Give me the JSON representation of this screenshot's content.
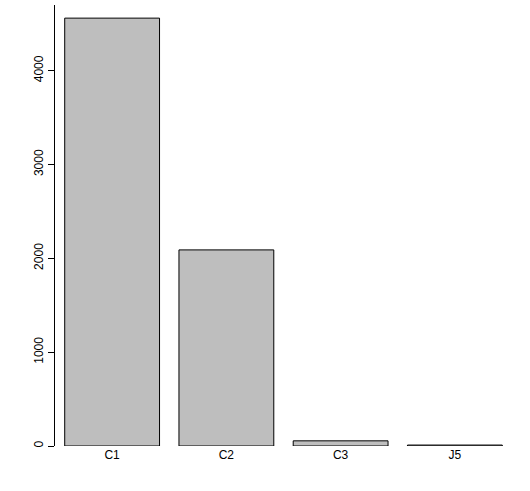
{
  "chart_data": {
    "type": "bar",
    "categories": [
      "C1",
      "C2",
      "C3",
      "J5"
    ],
    "values": [
      4560,
      2090,
      55,
      10
    ],
    "color": "#bebebe",
    "ylim": [
      0,
      4700
    ],
    "yticks": [
      0,
      1000,
      2000,
      3000,
      4000
    ],
    "grid": false
  }
}
